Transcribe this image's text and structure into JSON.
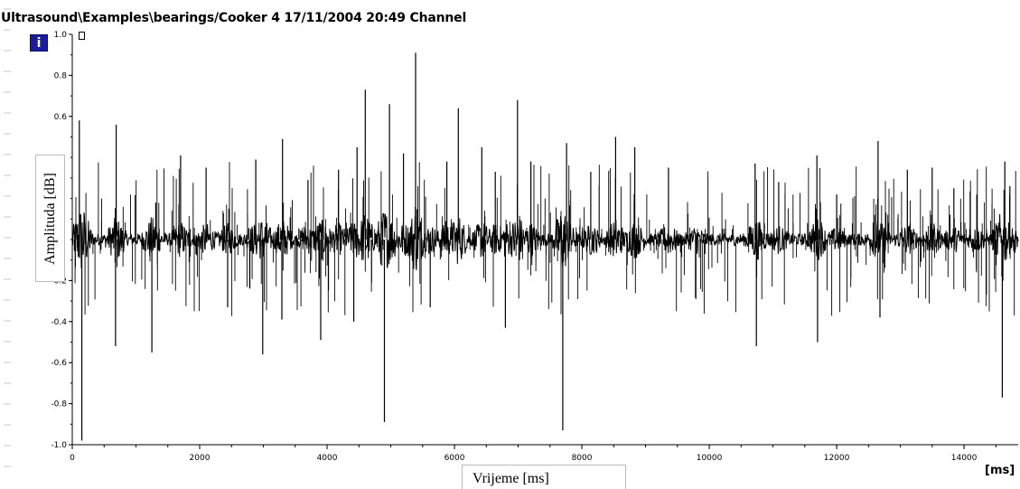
{
  "window": {
    "title": "Ultrasound\\Examples\\bearings/Cooker 4 17/11/2004 20:49 Channel"
  },
  "toolbar": {
    "info_icon": "info-icon",
    "info_glyph": "i",
    "box_icon": "small-box-icon"
  },
  "chart_data": {
    "type": "line",
    "xlabel": "Vrijeme [ms]",
    "ylabel": "Amplituda [dB]",
    "x_unit": "[ms]",
    "xlim": [
      0,
      14850
    ],
    "ylim": [
      -1.0,
      1.0
    ],
    "x_ticks": [
      0,
      2000,
      4000,
      6000,
      8000,
      10000,
      12000,
      14000
    ],
    "x_tick_labels": [
      "0",
      "2000",
      "4000",
      "6000",
      "8000",
      "10000",
      "12000",
      "14000"
    ],
    "y_ticks": [
      1.0,
      0.8,
      0.6,
      -0.2,
      -0.4,
      -0.6,
      -0.8,
      -1.0
    ],
    "y_tick_labels": [
      "1.0",
      "0.8",
      "0.6",
      "-0.2",
      "-0.4",
      "-0.6",
      "-0.8",
      "-1.0"
    ],
    "grid": false,
    "line_color": "#000000",
    "baseline_noise_amplitude": 0.03,
    "spikes": [
      {
        "x": 110,
        "y": 0.58
      },
      {
        "x": 150,
        "y": -0.98
      },
      {
        "x": 680,
        "y": -0.52
      },
      {
        "x": 690,
        "y": 0.56
      },
      {
        "x": 1250,
        "y": -0.55
      },
      {
        "x": 1310,
        "y": 0.18
      },
      {
        "x": 1700,
        "y": 0.41
      },
      {
        "x": 2100,
        "y": 0.35
      },
      {
        "x": 2440,
        "y": -0.33
      },
      {
        "x": 2880,
        "y": 0.39
      },
      {
        "x": 2990,
        "y": -0.56
      },
      {
        "x": 3290,
        "y": -0.39
      },
      {
        "x": 3300,
        "y": 0.49
      },
      {
        "x": 3700,
        "y": 0.29
      },
      {
        "x": 3900,
        "y": -0.49
      },
      {
        "x": 4180,
        "y": 0.34
      },
      {
        "x": 4420,
        "y": -0.4
      },
      {
        "x": 4470,
        "y": 0.45
      },
      {
        "x": 4600,
        "y": 0.73
      },
      {
        "x": 4900,
        "y": -0.89
      },
      {
        "x": 4980,
        "y": 0.66
      },
      {
        "x": 5200,
        "y": 0.42
      },
      {
        "x": 5390,
        "y": 0.91
      },
      {
        "x": 5620,
        "y": -0.33
      },
      {
        "x": 5880,
        "y": 0.38
      },
      {
        "x": 6060,
        "y": 0.64
      },
      {
        "x": 6430,
        "y": 0.45
      },
      {
        "x": 6640,
        "y": 0.33
      },
      {
        "x": 6800,
        "y": -0.43
      },
      {
        "x": 6990,
        "y": 0.68
      },
      {
        "x": 7200,
        "y": 0.38
      },
      {
        "x": 7700,
        "y": -0.93
      },
      {
        "x": 7760,
        "y": 0.47
      },
      {
        "x": 8140,
        "y": 0.33
      },
      {
        "x": 8530,
        "y": 0.5
      },
      {
        "x": 8830,
        "y": 0.45
      },
      {
        "x": 9360,
        "y": 0.35
      },
      {
        "x": 9790,
        "y": -0.29
      },
      {
        "x": 10720,
        "y": 0.37
      },
      {
        "x": 10740,
        "y": -0.52
      },
      {
        "x": 11090,
        "y": 0.28
      },
      {
        "x": 11690,
        "y": 0.41
      },
      {
        "x": 11700,
        "y": -0.5
      },
      {
        "x": 12000,
        "y": 0.22
      },
      {
        "x": 12650,
        "y": 0.48
      },
      {
        "x": 12680,
        "y": -0.38
      },
      {
        "x": 13110,
        "y": 0.34
      },
      {
        "x": 13500,
        "y": 0.35
      },
      {
        "x": 13840,
        "y": 0.25
      },
      {
        "x": 14200,
        "y": 0.22
      },
      {
        "x": 14600,
        "y": -0.77
      },
      {
        "x": 14640,
        "y": 0.38
      },
      {
        "x": 14720,
        "y": 0.26
      }
    ],
    "unit_label": "[ms]"
  }
}
